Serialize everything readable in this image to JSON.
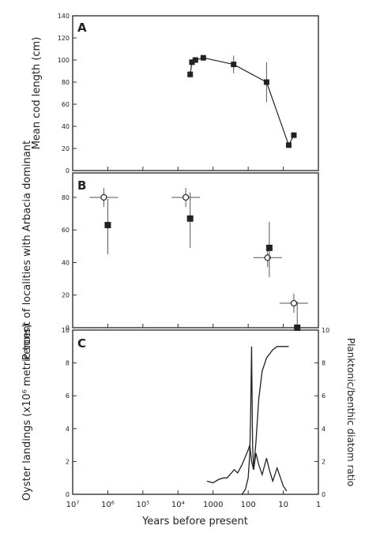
{
  "chart_data": [
    {
      "type": "scatter",
      "panel_label": "A",
      "ylabel": "Mean cod length (cm)",
      "yticks": [
        "0",
        "20",
        "40",
        "60",
        "80",
        "100",
        "120",
        "140"
      ],
      "ylim": [
        0,
        140
      ],
      "x_scale": "log-reversed",
      "xlim_years": [
        10000000,
        1
      ],
      "points": [
        {
          "x": 4500,
          "y": 87,
          "err": 3
        },
        {
          "x": 4000,
          "y": 98,
          "err": 2
        },
        {
          "x": 3200,
          "y": 100,
          "err": 2
        },
        {
          "x": 1900,
          "y": 102,
          "err": 1
        },
        {
          "x": 260,
          "y": 96,
          "err": 8
        },
        {
          "x": 30,
          "y": 80,
          "err": 18
        },
        {
          "x": 7,
          "y": 23,
          "err": 2
        },
        {
          "x": 5,
          "y": 32,
          "err": 2
        }
      ]
    },
    {
      "type": "scatter",
      "panel_label": "B",
      "ylabel": "Percent of localities with Arbacia dominant",
      "yticks": [
        "0",
        "20",
        "40",
        "60",
        "80"
      ],
      "ylim": [
        0,
        95
      ],
      "points_open": [
        {
          "x": 1300000,
          "y": 80
        },
        {
          "x": 6000,
          "y": 80
        },
        {
          "x": 28,
          "y": 43
        },
        {
          "x": 5,
          "y": 15
        }
      ],
      "points_filled": [
        {
          "x": 1000000,
          "y": 63
        },
        {
          "x": 4500,
          "y": 67
        },
        {
          "x": 25,
          "y": 49
        },
        {
          "x": 4,
          "y": 0
        }
      ]
    },
    {
      "type": "line",
      "panel_label": "C",
      "ylabel": "Oyster landings (x10⁶ metric tons)",
      "yticks": [
        "0",
        "2",
        "4",
        "6",
        "8",
        "10"
      ],
      "ylim": [
        0,
        10
      ],
      "y2label": "Planktonic/benthic diatom ratio",
      "y2ticks": [
        "0",
        "2",
        "4",
        "6",
        "8",
        "10"
      ],
      "series": [
        {
          "x": [
            150,
            120,
            100,
            90,
            85,
            80,
            75,
            70,
            60,
            50,
            40,
            30,
            20,
            15,
            10,
            7
          ],
          "y": [
            0,
            0.3,
            1.0,
            2.5,
            5.0,
            9.0,
            3.0,
            1.5,
            3.2,
            5.8,
            7.5,
            8.3,
            8.8,
            9.0,
            9.0,
            9.0
          ]
        },
        {
          "x": [
            1500,
            1000,
            700,
            500,
            400,
            300,
            250,
            200,
            150,
            120,
            100,
            90,
            80,
            70,
            60,
            50,
            40,
            30,
            25,
            20,
            15,
            12,
            10,
            8
          ],
          "y": [
            0.8,
            0.7,
            0.9,
            1.0,
            1.0,
            1.3,
            1.5,
            1.3,
            1.8,
            2.3,
            2.7,
            3.0,
            2.0,
            1.5,
            2.5,
            1.8,
            1.2,
            2.2,
            1.5,
            0.8,
            1.6,
            1.0,
            0.5,
            0.2
          ]
        }
      ]
    }
  ],
  "shared_x": {
    "xlabel": "Years before present",
    "tick_values": [
      10000000,
      1000000,
      100000,
      10000,
      1000,
      100,
      10,
      1
    ],
    "tick_labels": [
      "10⁷",
      "10⁶",
      "10⁵",
      "10⁴",
      "1000",
      "100",
      "10",
      "1"
    ]
  },
  "colors": {
    "ink": "#222222",
    "frame": "#333333",
    "error": "#555555"
  }
}
